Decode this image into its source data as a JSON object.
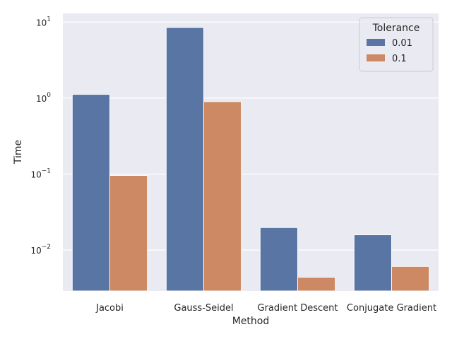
{
  "chart_data": {
    "type": "bar",
    "title": "",
    "xlabel": "Method",
    "ylabel": "Time",
    "yscale": "log",
    "ylim": [
      0.0029,
      13.0
    ],
    "yticks": [
      {
        "value": 0.01,
        "base": "10",
        "exp": "−2"
      },
      {
        "value": 0.1,
        "base": "10",
        "exp": "−1"
      },
      {
        "value": 1,
        "base": "10",
        "exp": "0"
      },
      {
        "value": 10,
        "base": "10",
        "exp": "1"
      }
    ],
    "categories": [
      "Jacobi",
      "Gauss-Seidel",
      "Gradient Descent",
      "Conjugate Gradient"
    ],
    "series": [
      {
        "name": "0.01",
        "color": "#5875a4",
        "values": [
          1.12,
          8.5,
          0.0198,
          0.0159
        ]
      },
      {
        "name": "0.1",
        "color": "#cc8963",
        "values": [
          0.096,
          0.9,
          0.0044,
          0.0061
        ]
      }
    ],
    "legend": {
      "title": "Tolerance",
      "placement": "top-right"
    },
    "grid": true,
    "background": "#eaeaf2"
  }
}
